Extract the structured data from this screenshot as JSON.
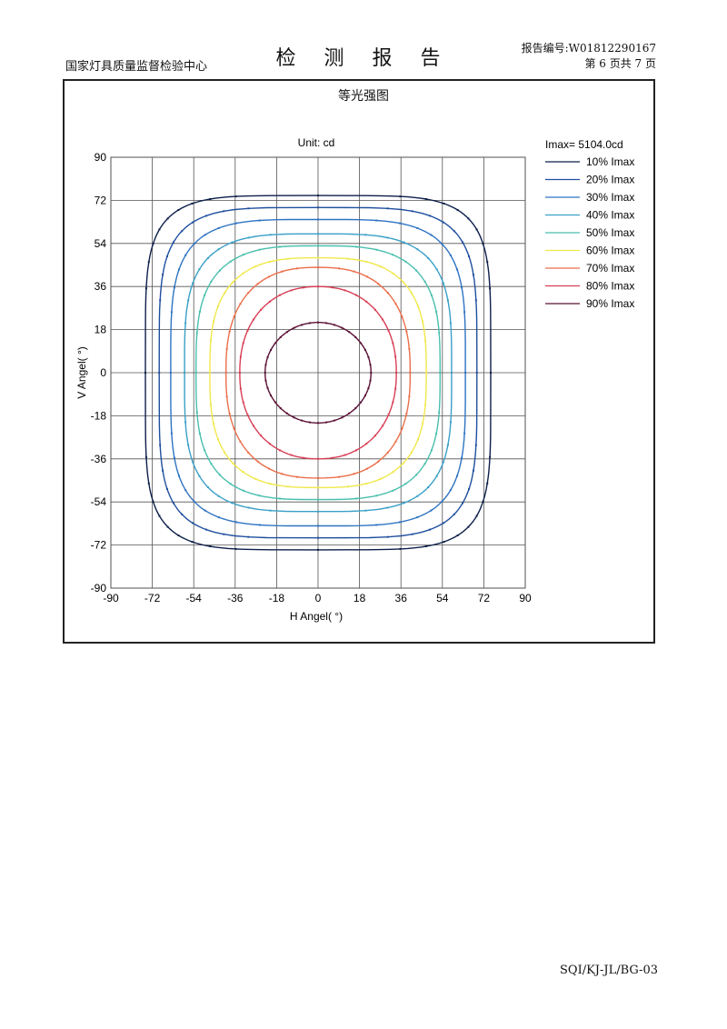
{
  "header": {
    "org": "国家灯具质量监督检验中心",
    "title": "检 测 报 告",
    "report_no": "报告编号:W01812290167",
    "page": "第 6 页共 7 页"
  },
  "footer": {
    "code": "SQI/KJ-JL/BG-03"
  },
  "chart_data": {
    "type": "line",
    "title": "等光强图",
    "subtitle": "Unit: cd",
    "xlabel": "H Angel( °)",
    "ylabel": "V Angel( °)",
    "xlim": [
      -90,
      90
    ],
    "ylim": [
      -90,
      90
    ],
    "xticks": [
      -90,
      -72,
      -54,
      -36,
      -18,
      0,
      18,
      36,
      54,
      72,
      90
    ],
    "yticks": [
      -90,
      -72,
      -54,
      -36,
      -18,
      0,
      18,
      36,
      54,
      72,
      90
    ],
    "grid": true,
    "imax_label": "Imax= 5104.0cd",
    "legend_position": "right",
    "series": [
      {
        "name": "10% Imax",
        "color": "#0d1f4a",
        "h_extent": 75,
        "v_extent": 74,
        "shape_exp": 5
      },
      {
        "name": "20% Imax",
        "color": "#1f4f9e",
        "h_extent": 69,
        "v_extent": 69,
        "shape_exp": 4.5
      },
      {
        "name": "30% Imax",
        "color": "#2f73c2",
        "h_extent": 64,
        "v_extent": 64,
        "shape_exp": 4
      },
      {
        "name": "40% Imax",
        "color": "#3aa0c7",
        "h_extent": 58,
        "v_extent": 58,
        "shape_exp": 3.6
      },
      {
        "name": "50% Imax",
        "color": "#49bfae",
        "h_extent": 53,
        "v_extent": 53,
        "shape_exp": 3.2
      },
      {
        "name": "60% Imax",
        "color": "#f0e84a",
        "h_extent": 47,
        "v_extent": 48,
        "shape_exp": 2.9
      },
      {
        "name": "70% Imax",
        "color": "#ea6e4a",
        "h_extent": 40,
        "v_extent": 44,
        "shape_exp": 2.5
      },
      {
        "name": "80% Imax",
        "color": "#d83e55",
        "h_extent": 34,
        "v_extent": 36,
        "shape_exp": 2.2
      },
      {
        "name": "90% Imax",
        "color": "#5a1035",
        "h_extent": 23,
        "v_extent": 21,
        "shape_exp": 2
      }
    ]
  }
}
